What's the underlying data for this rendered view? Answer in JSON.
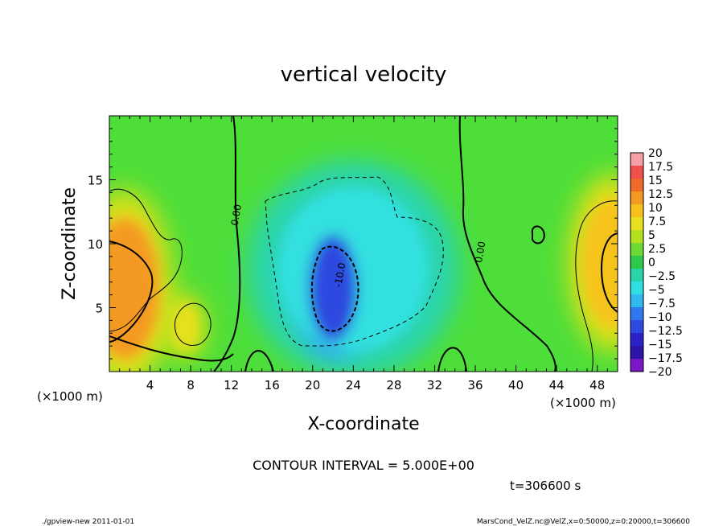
{
  "chart_data": {
    "type": "heatmap",
    "title": "vertical velocity",
    "xlabel": "X-coordinate",
    "ylabel": "Z-coordinate",
    "x_unit": "(×1000 m)",
    "y_unit": "(×1000 m)",
    "xlim": [
      0,
      50
    ],
    "ylim": [
      0,
      20
    ],
    "x_ticks": [
      4,
      8,
      12,
      16,
      20,
      24,
      28,
      32,
      36,
      40,
      44,
      48
    ],
    "y_ticks": [
      5,
      10,
      15
    ],
    "colorbar": {
      "levels": [
        20,
        17.5,
        15,
        12.5,
        10,
        7.5,
        5,
        2.5,
        0,
        -2.5,
        -5,
        -7.5,
        -10,
        -12.5,
        -15,
        -17.5,
        -20
      ],
      "labels": [
        "20",
        "17.5",
        "15",
        "12.5",
        "10",
        "7.5",
        "5",
        "2.5",
        "0",
        "−2.5",
        "−5",
        "−7.5",
        "−10",
        "−12.5",
        "−15",
        "−17.5",
        "−20"
      ],
      "colors": [
        "#f4a0a6",
        "#f0504e",
        "#f06a2a",
        "#f49a22",
        "#f6c21a",
        "#e8e01c",
        "#b4e01e",
        "#6ed834",
        "#2ec84a",
        "#2ad4aa",
        "#30e0e0",
        "#30b8f0",
        "#3078f0",
        "#2f4ae0",
        "#2c22c8",
        "#2c14a8",
        "#7a18c8"
      ]
    },
    "features": [
      {
        "name": "updraft-left",
        "x": 1.5,
        "z": 6.5,
        "value": 12.5
      },
      {
        "name": "updraft-right",
        "x": 49.5,
        "z": 8.5,
        "value": 10
      },
      {
        "name": "updraft-small",
        "x": 7.5,
        "z": 3.5,
        "value": 7.5
      },
      {
        "name": "downdraft-center",
        "x": 22,
        "z": 6.5,
        "value": -12.5
      },
      {
        "name": "downdraft-halo",
        "x": 24,
        "z": 8,
        "value": -5
      }
    ],
    "contour_labels": [
      {
        "text": "0.00",
        "x": 12.8,
        "z": 12.2
      },
      {
        "text": "0.00",
        "x": 36.8,
        "z": 9.3
      },
      {
        "text": "-10.0",
        "x": 23.0,
        "z": 7.5
      }
    ],
    "contour_interval_text": "CONTOUR INTERVAL = 5.000E+00",
    "time_text": "t=306600 s"
  },
  "footer": {
    "left": "./gpview-new  2011-01-01",
    "right": "MarsCond_VelZ.nc@VelZ,x=0:50000,z=0:20000,t=306600"
  }
}
